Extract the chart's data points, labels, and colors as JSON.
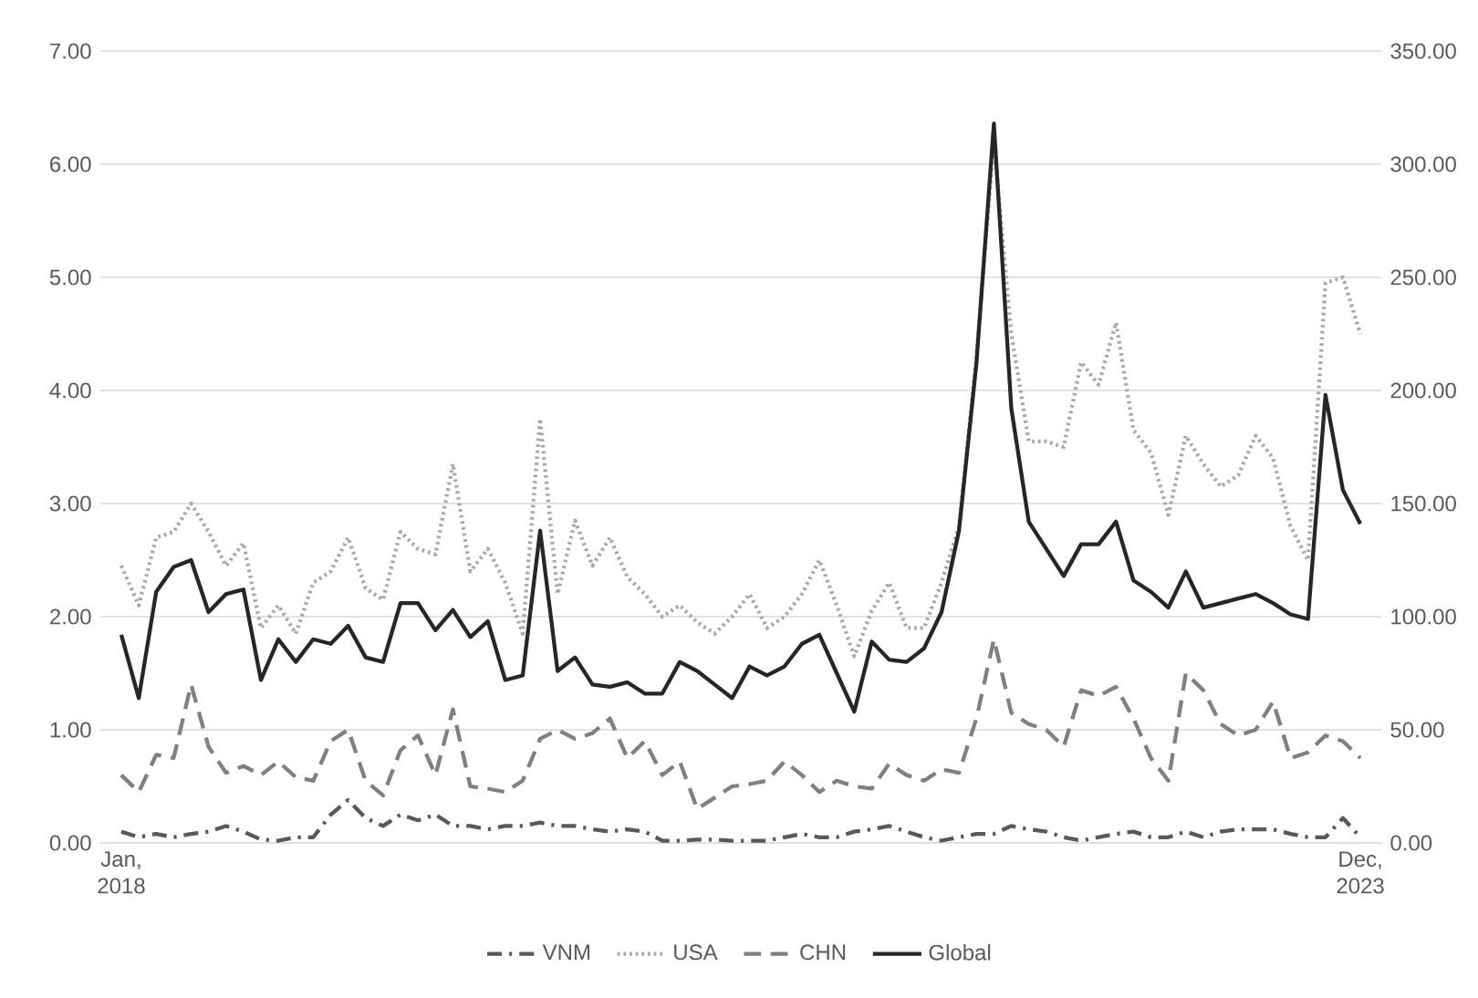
{
  "chart_data": {
    "type": "line",
    "categories": [
      "Jan, 2018",
      null,
      null,
      null,
      null,
      null,
      null,
      null,
      null,
      null,
      null,
      null,
      null,
      null,
      null,
      null,
      null,
      null,
      null,
      null,
      null,
      null,
      null,
      null,
      null,
      null,
      null,
      null,
      null,
      null,
      null,
      null,
      null,
      null,
      null,
      null,
      null,
      null,
      null,
      null,
      null,
      null,
      null,
      null,
      null,
      null,
      null,
      null,
      null,
      null,
      null,
      null,
      null,
      null,
      null,
      null,
      null,
      null,
      null,
      null,
      null,
      null,
      null,
      null,
      null,
      null,
      null,
      null,
      null,
      null,
      null,
      "Dec, 2023"
    ],
    "series": [
      {
        "name": "VNM",
        "color": "#595959",
        "line_style": "dashdot",
        "values": [
          0.1,
          0.05,
          0.08,
          0.05,
          0.08,
          0.1,
          0.15,
          0.1,
          0.03,
          0.02,
          0.05,
          0.05,
          0.25,
          0.38,
          0.22,
          0.15,
          0.25,
          0.2,
          0.25,
          0.15,
          0.15,
          0.12,
          0.15,
          0.15,
          0.18,
          0.15,
          0.15,
          0.12,
          0.1,
          0.12,
          0.1,
          0.02,
          0.02,
          0.03,
          0.03,
          0.02,
          0.02,
          0.02,
          0.05,
          0.08,
          0.05,
          0.05,
          0.1,
          0.12,
          0.15,
          0.1,
          0.05,
          0.02,
          0.05,
          0.08,
          0.08,
          0.15,
          0.12,
          0.1,
          0.05,
          0.02,
          0.05,
          0.08,
          0.1,
          0.05,
          0.05,
          0.1,
          0.05,
          0.1,
          0.12,
          0.12,
          0.12,
          0.08,
          0.05,
          0.05,
          0.22,
          0.05
        ]
      },
      {
        "name": "USA",
        "color": "#a6a6a6",
        "line_style": "dotted",
        "values": [
          2.45,
          2.1,
          2.7,
          2.75,
          3.0,
          2.75,
          2.45,
          2.65,
          1.9,
          2.1,
          1.85,
          2.3,
          2.4,
          2.7,
          2.25,
          2.15,
          2.75,
          2.6,
          2.55,
          3.35,
          2.4,
          2.6,
          2.3,
          1.85,
          3.75,
          2.2,
          2.85,
          2.45,
          2.7,
          2.35,
          2.2,
          2.0,
          2.1,
          1.95,
          1.85,
          2.0,
          2.2,
          1.9,
          2.0,
          2.2,
          2.5,
          2.1,
          1.65,
          2.05,
          2.3,
          1.9,
          1.9,
          2.3,
          2.8,
          4.3,
          6.2,
          4.5,
          3.55,
          3.55,
          3.5,
          4.25,
          4.05,
          4.6,
          3.65,
          3.45,
          2.9,
          3.6,
          3.35,
          3.15,
          3.25,
          3.6,
          3.4,
          2.8,
          2.5,
          4.95,
          5.0,
          4.5
        ]
      },
      {
        "name": "CHN",
        "color": "#808080",
        "line_style": "dashed",
        "values": [
          0.6,
          0.45,
          0.78,
          0.75,
          1.4,
          0.85,
          0.62,
          0.68,
          0.6,
          0.72,
          0.58,
          0.55,
          0.9,
          1.0,
          0.55,
          0.42,
          0.82,
          0.95,
          0.6,
          1.18,
          0.5,
          0.48,
          0.45,
          0.55,
          0.92,
          1.0,
          0.92,
          0.97,
          1.1,
          0.75,
          0.9,
          0.6,
          0.72,
          0.3,
          0.4,
          0.5,
          0.52,
          0.55,
          0.72,
          0.6,
          0.45,
          0.55,
          0.5,
          0.48,
          0.7,
          0.6,
          0.55,
          0.65,
          0.62,
          1.1,
          1.8,
          1.15,
          1.05,
          1.0,
          0.85,
          1.35,
          1.3,
          1.38,
          1.1,
          0.75,
          0.55,
          1.5,
          1.35,
          1.05,
          0.95,
          1.0,
          1.25,
          0.75,
          0.8,
          0.95,
          0.9,
          0.75
        ]
      },
      {
        "name": "Global",
        "color": "#262626",
        "line_style": "solid",
        "axis": "y2",
        "values": [
          92,
          64,
          111,
          122,
          125,
          102,
          110,
          112,
          72,
          90,
          80,
          90,
          88,
          96,
          82,
          80,
          106,
          106,
          94,
          103,
          91,
          98,
          72,
          74,
          138,
          76,
          82,
          70,
          69,
          71,
          66,
          66,
          80,
          76,
          70,
          64,
          78,
          74,
          78,
          88,
          92,
          75,
          58,
          89,
          81,
          80,
          86,
          102,
          138,
          212,
          318,
          192,
          142,
          130,
          118,
          132,
          132,
          142,
          116,
          111,
          104,
          120,
          104,
          106,
          108,
          110,
          106,
          101,
          99,
          198,
          156,
          141
        ]
      }
    ],
    "ylim": [
      0,
      7
    ],
    "yticks": [
      {
        "value": 0,
        "label": "0.00"
      },
      {
        "value": 1,
        "label": "1.00"
      },
      {
        "value": 2,
        "label": "2.00"
      },
      {
        "value": 3,
        "label": "3.00"
      },
      {
        "value": 4,
        "label": "4.00"
      },
      {
        "value": 5,
        "label": "5.00"
      },
      {
        "value": 6,
        "label": "6.00"
      },
      {
        "value": 7,
        "label": "7.00"
      }
    ],
    "y2lim": [
      0,
      350
    ],
    "y2ticks": [
      {
        "value": 0,
        "label": "0.00"
      },
      {
        "value": 50,
        "label": "50.00"
      },
      {
        "value": 100,
        "label": "100.00"
      },
      {
        "value": 150,
        "label": "150.00"
      },
      {
        "value": 200,
        "label": "200.00"
      },
      {
        "value": 250,
        "label": "250.00"
      },
      {
        "value": 300,
        "label": "300.00"
      },
      {
        "value": 350,
        "label": "350.00"
      }
    ],
    "grid": "y",
    "legend": "bottom"
  }
}
